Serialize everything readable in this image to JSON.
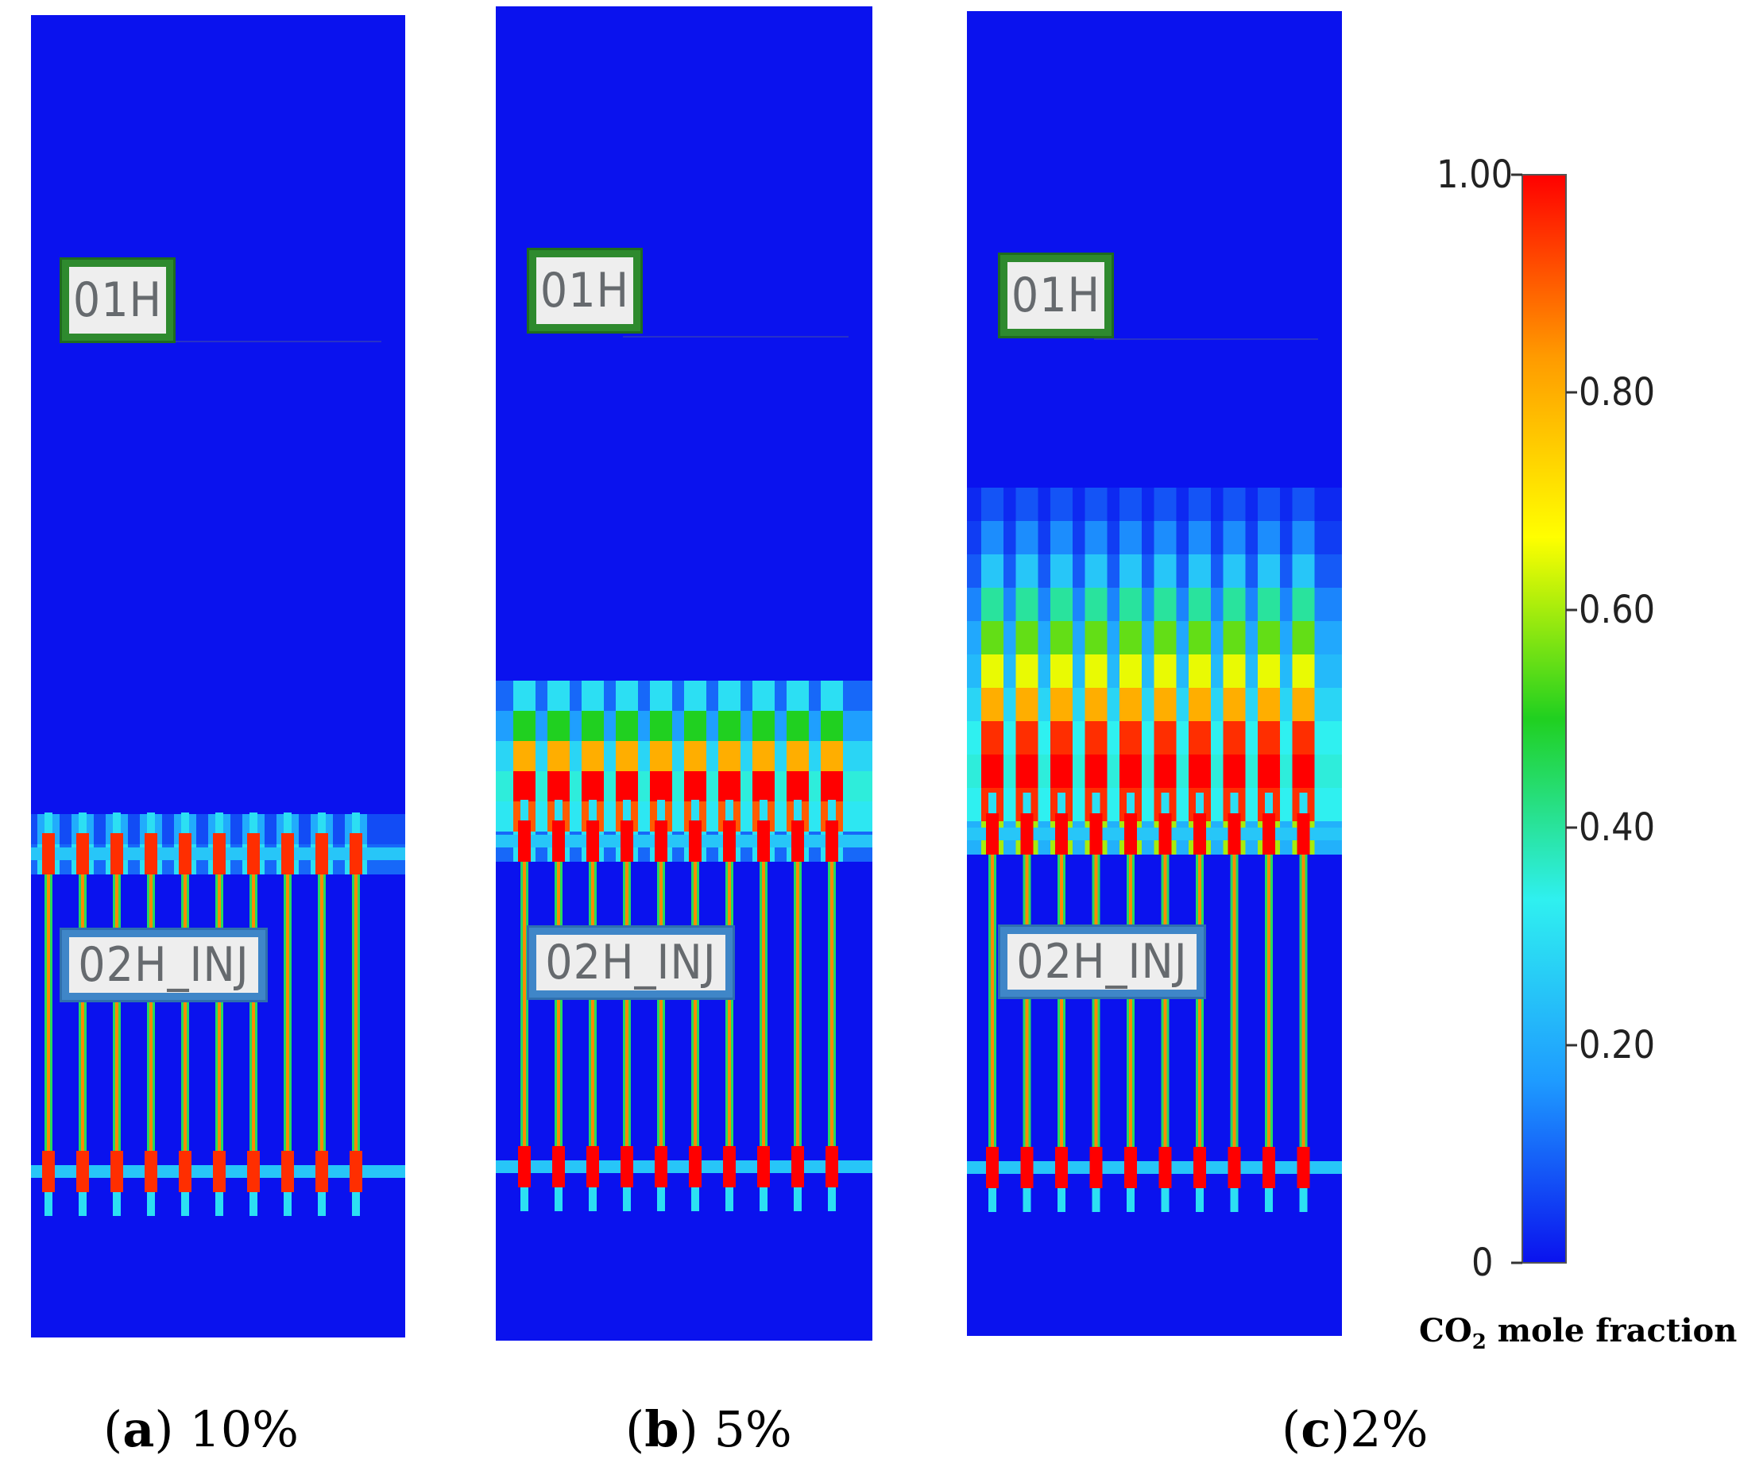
{
  "chart_data": {
    "type": "heatmap",
    "description_variable": "CO₂ mole fraction",
    "colorbar": {
      "title_prefix": "CO",
      "title_sub": "2",
      "title_suffix": " mole fraction",
      "range": [
        0,
        1.0
      ],
      "ticks": [
        {
          "value": 1.0,
          "label": "1.00"
        },
        {
          "value": 0.8,
          "label": "0.80"
        },
        {
          "value": 0.6,
          "label": "0.60"
        },
        {
          "value": 0.4,
          "label": "0.40"
        },
        {
          "value": 0.2,
          "label": "0.20"
        },
        {
          "value": 0.0,
          "label": "0"
        }
      ],
      "colors": [
        "#0a12ee",
        "#1e9bff",
        "#2ff0f0",
        "#20d020",
        "#ffff00",
        "#ff9a00",
        "#ff0000"
      ]
    },
    "panels": [
      {
        "id": "a",
        "caption_letter": "a",
        "caption_value": "10%",
        "plume_rows": [
          0.2,
          0.3
        ],
        "core_max": 0.95
      },
      {
        "id": "b",
        "caption_letter": "b",
        "caption_value": "5%",
        "plume_rows": [
          0.3,
          0.5,
          0.8,
          1.0,
          0.9,
          0.3
        ],
        "core_max": 1.0
      },
      {
        "id": "c",
        "caption_letter": "c",
        "caption_value": "2%",
        "plume_rows": [
          0.08,
          0.15,
          0.25,
          0.4,
          0.55,
          0.65,
          0.8,
          0.95,
          1.0,
          0.95,
          0.6
        ],
        "core_max": 1.0
      }
    ],
    "well_count": 10
  },
  "labels": {
    "producer": "01H",
    "injector": "02H_INJ"
  },
  "captions": [
    {
      "open": "(",
      "letter": "a",
      "close": ") 10%"
    },
    {
      "open": "(",
      "letter": "b",
      "close": ") 5%"
    },
    {
      "open": "(",
      "letter": "c",
      "close": ")2%"
    }
  ]
}
